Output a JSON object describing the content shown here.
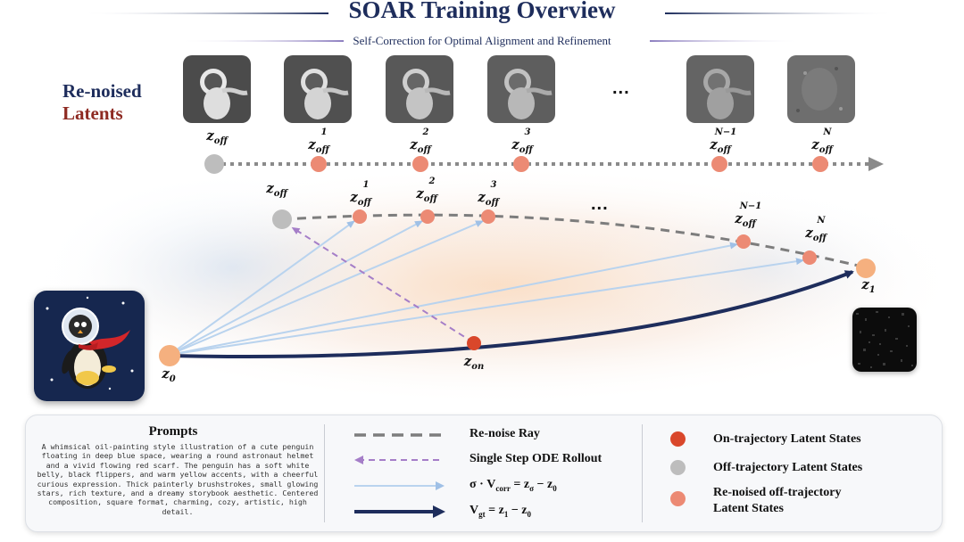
{
  "header": {
    "title": "SOAR Training Overview",
    "subtitle": "Self-Correction for Optimal Alignment and Refinement"
  },
  "row_label": {
    "line1": "Re-noised",
    "line2": "Latents",
    "line1_color": "#1e2d5c",
    "line2_color": "#8e2a22"
  },
  "top_row": {
    "labels": [
      {
        "base": "z",
        "sub": "off",
        "sup": ""
      },
      {
        "base": "z",
        "sub": "off",
        "sup": "1"
      },
      {
        "base": "z",
        "sub": "off",
        "sup": "2"
      },
      {
        "base": "z",
        "sub": "off",
        "sup": "3"
      },
      {
        "base": "z",
        "sub": "off",
        "sup": "N−1"
      },
      {
        "base": "z",
        "sub": "off",
        "sup": "N"
      }
    ],
    "ellipsis": "..."
  },
  "trajectory": {
    "labels": [
      {
        "base": "z",
        "sub": "off",
        "sup": ""
      },
      {
        "base": "z",
        "sub": "off",
        "sup": "1"
      },
      {
        "base": "z",
        "sub": "off",
        "sup": "2"
      },
      {
        "base": "z",
        "sub": "off",
        "sup": "3"
      },
      {
        "base": "z",
        "sub": "off",
        "sup": "N−1"
      },
      {
        "base": "z",
        "sub": "off",
        "sup": "N"
      }
    ],
    "ellipsis": "...",
    "z0": {
      "base": "z",
      "sub": "0"
    },
    "z1": {
      "base": "z",
      "sub": "1"
    },
    "zon": {
      "base": "z",
      "sub": "on"
    }
  },
  "legend": {
    "prompts_title": "Prompts",
    "prompt_text": "A whimsical oil-painting style illustration of a cute penguin floating in deep blue space, wearing a round astronaut helmet and a vivid flowing red scarf. The penguin has a soft white belly, black flippers, and warm yellow accents, with a cheerful curious expression. Thick painterly brushstrokes, small glowing stars, rich texture, and a dreamy storybook aesthetic. Centered composition, square format, charming, cozy, artistic, high detail.",
    "renoise_ray": "Re-noise Ray",
    "ode_rollout": "Single Step ODE Rollout",
    "sigma_eq": "σ · V",
    "sigma_sub": "corr",
    "sigma_rhs": " = z",
    "sigma_rhs_sub1": "σ",
    "sigma_rhs_mid": " − z",
    "sigma_rhs_sub2": "0",
    "vgt_base": "V",
    "vgt_sub": "gt",
    "vgt_rhs": " = z",
    "vgt_rhs_sub1": "1",
    "vgt_rhs_mid": " − z",
    "vgt_rhs_sub2": "0",
    "on_traj": "On-trajectory Latent States",
    "off_traj": "Off-trajectory Latent States",
    "renoised_line1": "Re-noised off-trajectory",
    "renoised_line2": "Latent States"
  },
  "colors": {
    "navy": "#1e2d5c",
    "on_dot": "#d9472b",
    "off_dot": "#bdbdbd",
    "renoised_dot": "#ec8a74",
    "z_endpoint": "#f5b07f",
    "light_arrow": "#b9d3ee",
    "purple": "#a57ec8",
    "gray_dash": "#7d7d7d"
  },
  "icons": [
    "penguin-image",
    "noise-thumbnail",
    "arrow-head"
  ]
}
